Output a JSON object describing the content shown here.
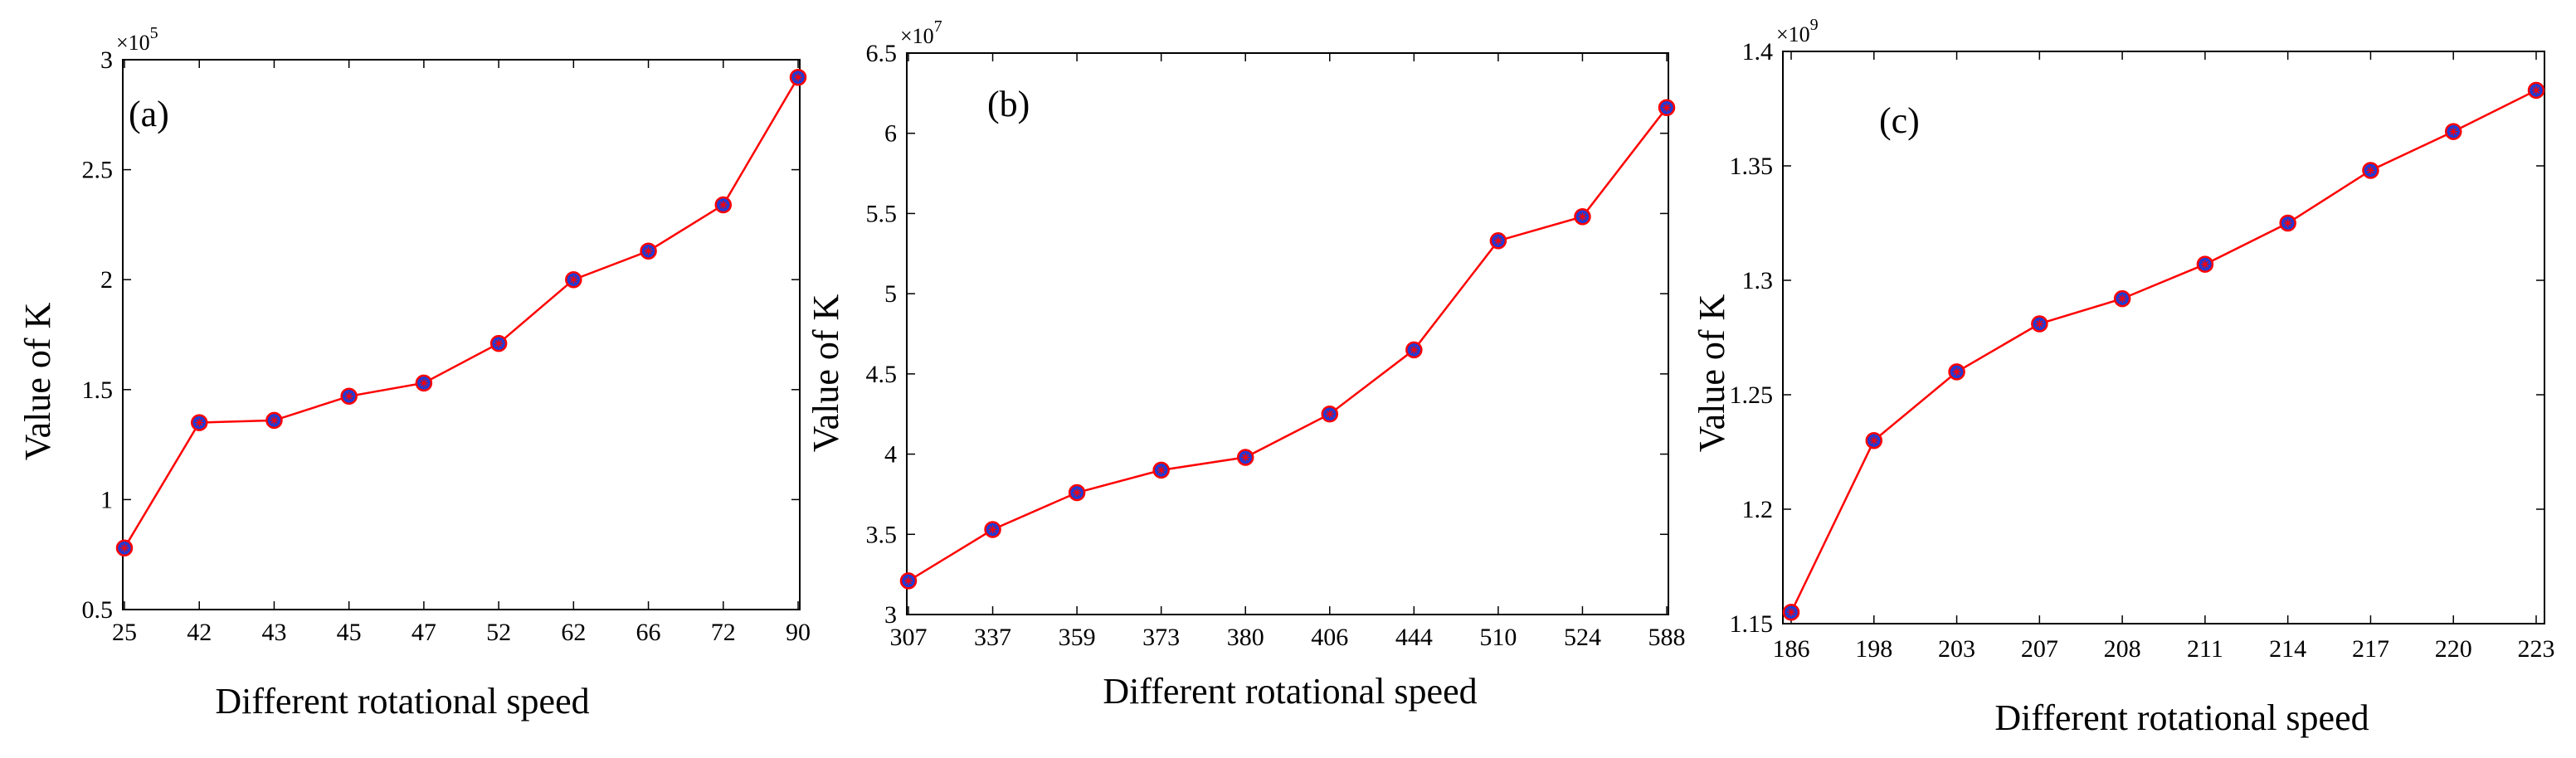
{
  "chart_data": [
    {
      "type": "line",
      "panel_label": "(a)",
      "title": "",
      "xlabel": "Different rotational speed",
      "ylabel": "Value of K",
      "categories": [
        "25",
        "42",
        "43",
        "45",
        "47",
        "52",
        "62",
        "66",
        "72",
        "90"
      ],
      "values": [
        0.78,
        1.35,
        1.36,
        1.47,
        1.53,
        1.71,
        2.0,
        2.13,
        2.34,
        2.92
      ],
      "ylim": [
        0.5,
        3.0
      ],
      "yticks": [
        "0.5",
        "1",
        "1.5",
        "2",
        "2.5",
        "3"
      ],
      "multiplier_base": "×10",
      "multiplier_exp": "5",
      "line_color": "#ff0000",
      "marker_color": "#1f3bd6",
      "grid": false
    },
    {
      "type": "line",
      "panel_label": "(b)",
      "title": "",
      "xlabel": "Different rotational speed",
      "ylabel": "Value of K",
      "categories": [
        "307",
        "337",
        "359",
        "373",
        "380",
        "406",
        "444",
        "510",
        "524",
        "588"
      ],
      "values": [
        3.21,
        3.53,
        3.76,
        3.9,
        3.98,
        4.25,
        4.65,
        5.33,
        5.48,
        6.16
      ],
      "ylim": [
        3.0,
        6.5
      ],
      "yticks": [
        "3",
        "3.5",
        "4",
        "4.5",
        "5",
        "5.5",
        "6",
        "6.5"
      ],
      "multiplier_base": "×10",
      "multiplier_exp": "7",
      "line_color": "#ff0000",
      "marker_color": "#1f3bd6",
      "grid": false
    },
    {
      "type": "line",
      "panel_label": "(c)",
      "title": "",
      "xlabel": "Different rotational speed",
      "ylabel": "Value of K",
      "categories": [
        "186",
        "198",
        "203",
        "207",
        "208",
        "211",
        "214",
        "217",
        "220",
        "223"
      ],
      "values": [
        1.155,
        1.23,
        1.26,
        1.281,
        1.292,
        1.307,
        1.325,
        1.348,
        1.365,
        1.383
      ],
      "ylim": [
        1.15,
        1.4
      ],
      "yticks": [
        "1.15",
        "1.2",
        "1.25",
        "1.3",
        "1.35",
        "1.4"
      ],
      "multiplier_base": "×10",
      "multiplier_exp": "9",
      "line_color": "#ff0000",
      "marker_color": "#1f3bd6",
      "grid": false
    }
  ]
}
